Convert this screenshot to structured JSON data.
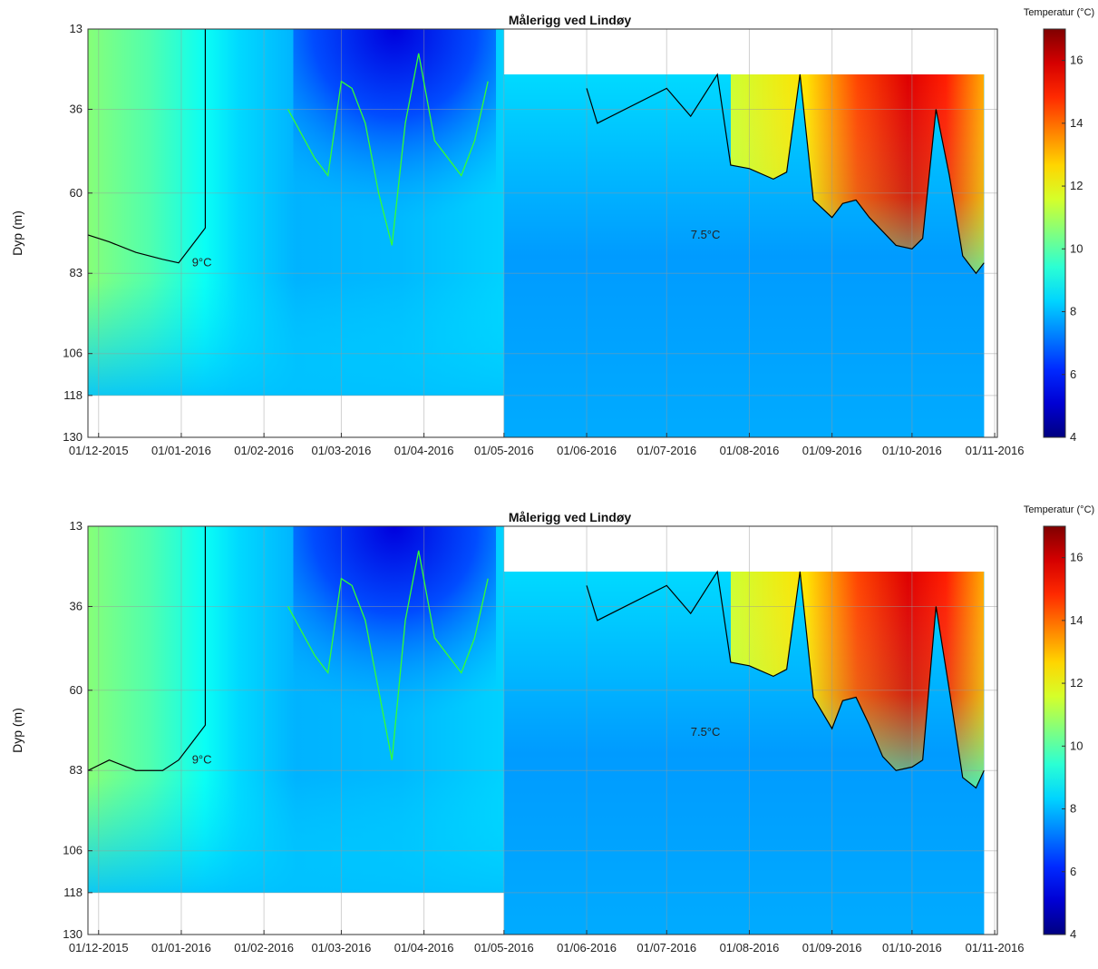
{
  "chart_data": [
    {
      "type": "heatmap",
      "title": "Målerigg ved Lindøy",
      "ylabel": "Dyp (m)",
      "xlabel": "",
      "colorbar_label": "Temperatur (°C)",
      "colorbar_ticks": [
        "4",
        "6",
        "8",
        "10",
        "12",
        "14",
        "16"
      ],
      "clim": [
        4,
        17
      ],
      "ylim": [
        13,
        130
      ],
      "y_ticks": [
        "13",
        "36",
        "60",
        "83",
        "106",
        "118",
        "130"
      ],
      "x_ticks": [
        "01/12-2015",
        "01/01-2016",
        "01/02-2016",
        "01/03-2016",
        "01/04-2016",
        "01/05-2016",
        "01/06-2016",
        "01/07-2016",
        "01/08-2016",
        "01/09-2016",
        "01/10-2016",
        "01/11-2016"
      ],
      "xlim": [
        "2015-11-27",
        "2016-11-02"
      ],
      "grid": true,
      "colormap": "jet",
      "contours": [
        {
          "label": "9°C",
          "level": 9,
          "color": "#000000"
        },
        {
          "label": "7.5°C",
          "level": 7.5,
          "color": "#33ff33"
        }
      ],
      "data_coverage": [
        {
          "start": "2015-11-27",
          "end": "2016-05-01",
          "depth_range": [
            13,
            118
          ]
        },
        {
          "start": "2016-05-01",
          "end": "2016-10-28",
          "depth_range": [
            26,
            130
          ]
        }
      ],
      "nine_c_depth": {
        "dates": [
          "2015-11-27",
          "2015-12-05",
          "2015-12-15",
          "2015-12-25",
          "2015-12-31",
          "2016-01-05",
          "2016-01-10",
          "2016-06-01",
          "2016-06-05",
          "2016-07-01",
          "2016-07-10",
          "2016-07-20",
          "2016-07-25",
          "2016-08-01",
          "2016-08-10",
          "2016-08-15",
          "2016-08-20",
          "2016-08-25",
          "2016-09-01",
          "2016-09-05",
          "2016-09-10",
          "2016-09-15",
          "2016-09-20",
          "2016-09-25",
          "2016-10-01",
          "2016-10-05",
          "2016-10-10",
          "2016-10-15",
          "2016-10-20",
          "2016-10-25",
          "2016-10-28"
        ],
        "depths": [
          72,
          74,
          77,
          79,
          80,
          75,
          70,
          30,
          40,
          30,
          38,
          26,
          52,
          53,
          56,
          54,
          26,
          62,
          67,
          63,
          62,
          67,
          71,
          75,
          76,
          73,
          36,
          55,
          78,
          83,
          80
        ]
      },
      "seven_five_c_depth": {
        "dates": [
          "2016-02-10",
          "2016-02-20",
          "2016-02-25",
          "2016-03-01",
          "2016-03-05",
          "2016-03-10",
          "2016-03-15",
          "2016-03-20",
          "2016-03-25",
          "2016-03-30",
          "2016-04-05",
          "2016-04-10",
          "2016-04-15",
          "2016-04-20",
          "2016-04-25"
        ],
        "depths": [
          36,
          50,
          55,
          28,
          30,
          40,
          60,
          75,
          40,
          20,
          45,
          50,
          55,
          45,
          28
        ]
      }
    },
    {
      "type": "heatmap",
      "title": "Målerigg ved Lindøy",
      "ylabel": "Dyp (m)",
      "xlabel": "",
      "colorbar_label": "Temperatur (°C)",
      "colorbar_ticks": [
        "4",
        "6",
        "8",
        "10",
        "12",
        "14",
        "16"
      ],
      "clim": [
        4,
        17
      ],
      "ylim": [
        13,
        130
      ],
      "y_ticks": [
        "13",
        "36",
        "60",
        "83",
        "106",
        "118",
        "130"
      ],
      "x_ticks": [
        "01/12-2015",
        "01/01-2016",
        "01/02-2016",
        "01/03-2016",
        "01/04-2016",
        "01/05-2016",
        "01/06-2016",
        "01/07-2016",
        "01/08-2016",
        "01/09-2016",
        "01/10-2016",
        "01/11-2016"
      ],
      "xlim": [
        "2015-11-27",
        "2016-11-02"
      ],
      "grid": true,
      "colormap": "jet",
      "contours": [
        {
          "label": "9°C",
          "level": 9,
          "color": "#000000"
        },
        {
          "label": "7.5°C",
          "level": 7.5,
          "color": "#33ff33"
        }
      ],
      "data_coverage": [
        {
          "start": "2015-11-27",
          "end": "2016-05-01",
          "depth_range": [
            13,
            118
          ]
        },
        {
          "start": "2016-05-01",
          "end": "2016-10-28",
          "depth_range": [
            26,
            130
          ]
        }
      ],
      "nine_c_depth": {
        "dates": [
          "2015-11-27",
          "2015-12-05",
          "2015-12-15",
          "2015-12-25",
          "2015-12-31",
          "2016-01-05",
          "2016-01-10",
          "2016-06-01",
          "2016-06-05",
          "2016-07-01",
          "2016-07-10",
          "2016-07-20",
          "2016-07-25",
          "2016-08-01",
          "2016-08-10",
          "2016-08-15",
          "2016-08-20",
          "2016-08-25",
          "2016-09-01",
          "2016-09-05",
          "2016-09-10",
          "2016-09-15",
          "2016-09-20",
          "2016-09-25",
          "2016-10-01",
          "2016-10-05",
          "2016-10-10",
          "2016-10-15",
          "2016-10-20",
          "2016-10-25",
          "2016-10-28"
        ],
        "depths": [
          83,
          80,
          83,
          83,
          80,
          75,
          70,
          30,
          40,
          30,
          38,
          26,
          52,
          53,
          56,
          54,
          26,
          62,
          71,
          63,
          62,
          70,
          79,
          83,
          82,
          80,
          36,
          60,
          85,
          88,
          83
        ]
      },
      "seven_five_c_depth": {
        "dates": [
          "2016-02-10",
          "2016-02-20",
          "2016-02-25",
          "2016-03-01",
          "2016-03-05",
          "2016-03-10",
          "2016-03-15",
          "2016-03-20",
          "2016-03-25",
          "2016-03-30",
          "2016-04-05",
          "2016-04-10",
          "2016-04-15",
          "2016-04-20",
          "2016-04-25"
        ],
        "depths": [
          36,
          50,
          55,
          28,
          30,
          40,
          60,
          80,
          40,
          20,
          45,
          50,
          55,
          45,
          28
        ]
      }
    }
  ]
}
